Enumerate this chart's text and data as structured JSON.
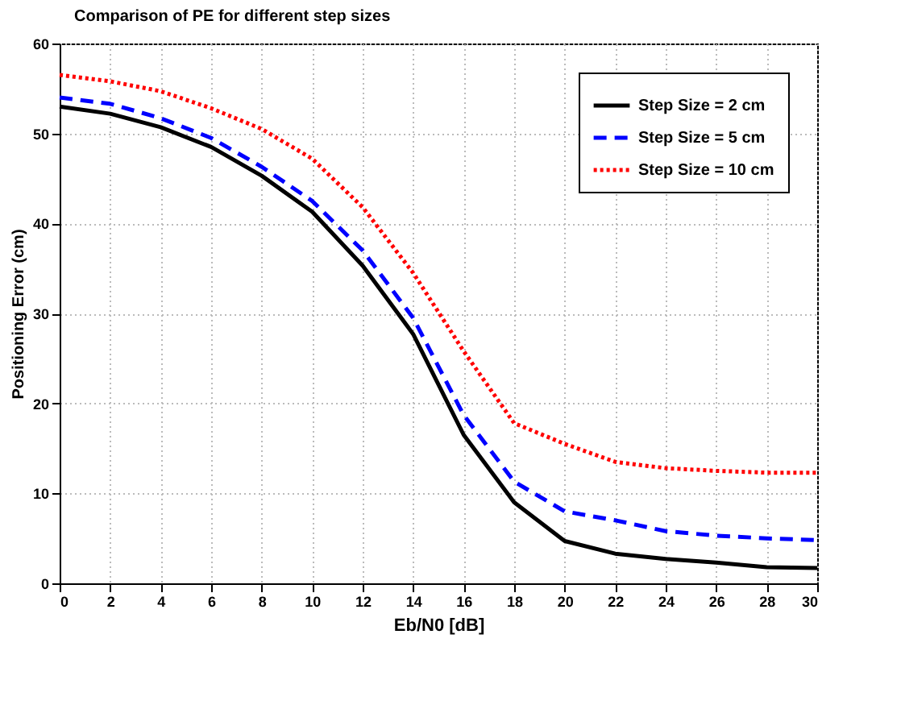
{
  "chart_data": {
    "type": "line",
    "title": "Comparison of PE for different step sizes",
    "xlabel": "Eb/N0 [dB]",
    "ylabel": "Positioning Error (cm)",
    "x": [
      0,
      2,
      4,
      6,
      8,
      10,
      12,
      14,
      16,
      18,
      20,
      22,
      24,
      26,
      28,
      30
    ],
    "series": [
      {
        "name": "Step Size = 2 cm",
        "color": "#000000",
        "line_style": "solid",
        "values": [
          53,
          52.2,
          50.7,
          48.5,
          45.3,
          41.3,
          35.3,
          27.7,
          16.5,
          9,
          4.7,
          3.3,
          2.7,
          2.3,
          1.8,
          1.7
        ]
      },
      {
        "name": "Step Size = 5 cm",
        "color": "#0000ff",
        "line_style": "dashed",
        "values": [
          54,
          53.3,
          51.7,
          49.5,
          46.3,
          42.5,
          37,
          29.5,
          18.7,
          11.3,
          8,
          7,
          5.8,
          5.3,
          5,
          4.8
        ]
      },
      {
        "name": "Step Size = 10 cm",
        "color": "#ff0000",
        "line_style": "dotted",
        "values": [
          56.5,
          55.8,
          54.7,
          52.8,
          50.5,
          47.2,
          41.8,
          34.5,
          25.8,
          17.8,
          15.5,
          13.5,
          12.8,
          12.5,
          12.3,
          12.3
        ]
      }
    ],
    "xlim": [
      0,
      30
    ],
    "xticks": [
      0,
      2,
      4,
      6,
      8,
      10,
      12,
      14,
      16,
      18,
      20,
      22,
      24,
      26,
      28,
      30
    ],
    "ylim": [
      0,
      60
    ],
    "yticks": [
      0,
      10,
      20,
      30,
      40,
      50,
      60
    ],
    "grid": true,
    "legend": "top right",
    "marker": "none"
  }
}
